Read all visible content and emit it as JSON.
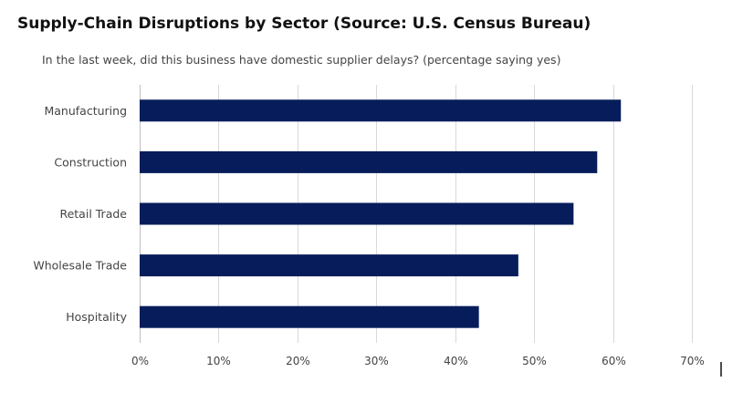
{
  "chart_data": {
    "type": "bar",
    "orientation": "horizontal",
    "title": "Supply-Chain Disruptions by Sector (Source: U.S. Census Bureau)",
    "subtitle": "In the last week, did this business have domestic supplier delays? (percentage saying yes)",
    "categories": [
      "Manufacturing",
      "Construction",
      "Retail Trade",
      "Wholesale Trade",
      "Hospitality"
    ],
    "values": [
      61,
      58,
      55,
      48,
      43
    ],
    "xlim": [
      0,
      70
    ],
    "xticks": [
      0,
      10,
      20,
      30,
      40,
      50,
      60,
      70
    ],
    "xtick_labels": [
      "0%",
      "10%",
      "20%",
      "30%",
      "40%",
      "50%",
      "60%",
      "70%"
    ],
    "grid": "vertical",
    "legend": "none",
    "bar_color": "#071d5b"
  }
}
